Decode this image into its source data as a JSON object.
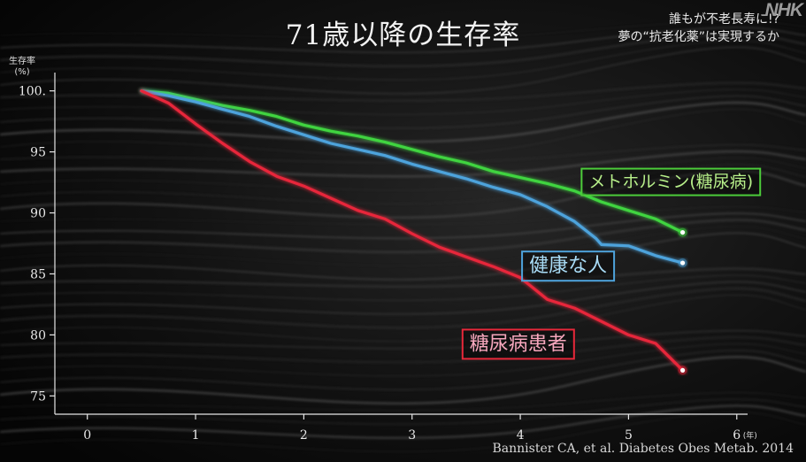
{
  "title": "71歳以降の生存率",
  "subtitle_lines": [
    "誰もが不老長寿に!?",
    "夢の“抗老化薬”は実現するか"
  ],
  "logo_text": "NHK",
  "source": "Bannister CA, et al. Diabetes Obes Metab. 2014",
  "chart_data": {
    "type": "line",
    "title": "71歳以降の生存率",
    "ylabel": "生存率",
    "yunit": "(%)",
    "xlabel": "",
    "xunit": "(年)",
    "xlim": [
      -0.3,
      6.1
    ],
    "ylim": [
      73.5,
      101.5
    ],
    "xticks": [
      0,
      1,
      2,
      3,
      4,
      5,
      6
    ],
    "xtick_labels": [
      "0",
      "1",
      "2",
      "3",
      "4",
      "5",
      "6"
    ],
    "yticks": [
      75,
      80,
      85,
      90,
      95,
      100
    ],
    "ytick_labels": [
      "75",
      "80",
      "85",
      "90",
      "95",
      "100."
    ],
    "series": [
      {
        "name": "メトホルミン(糖尿病)",
        "color": "#3fd43f",
        "x": [
          0.5,
          0.75,
          1.0,
          1.25,
          1.5,
          1.75,
          2.0,
          2.25,
          2.5,
          2.75,
          3.0,
          3.25,
          3.5,
          3.75,
          4.0,
          4.25,
          4.5,
          4.75,
          5.0,
          5.25,
          5.5
        ],
        "y": [
          100,
          99.8,
          99.3,
          98.8,
          98.4,
          97.9,
          97.2,
          96.7,
          96.3,
          95.8,
          95.2,
          94.6,
          94.1,
          93.4,
          92.9,
          92.4,
          91.8,
          90.9,
          90.2,
          89.5,
          88.4
        ]
      },
      {
        "name": "健康な人",
        "color": "#4ea3dc",
        "x": [
          0.5,
          0.75,
          1.0,
          1.25,
          1.5,
          1.75,
          2.0,
          2.25,
          2.5,
          2.75,
          3.0,
          3.25,
          3.5,
          3.75,
          4.0,
          4.25,
          4.5,
          4.7,
          4.75,
          5.0,
          5.25,
          5.5
        ],
        "y": [
          100,
          99.6,
          99.1,
          98.5,
          97.9,
          97.1,
          96.4,
          95.7,
          95.2,
          94.7,
          94.0,
          93.4,
          92.8,
          92.1,
          91.5,
          90.5,
          89.3,
          87.9,
          87.4,
          87.3,
          86.5,
          85.9
        ]
      },
      {
        "name": "糖尿病患者",
        "color": "#e8283a",
        "x": [
          0.5,
          0.75,
          1.0,
          1.25,
          1.5,
          1.75,
          2.0,
          2.25,
          2.5,
          2.75,
          3.0,
          3.25,
          3.5,
          3.75,
          4.0,
          4.25,
          4.5,
          4.75,
          5.0,
          5.25,
          5.5
        ],
        "y": [
          100,
          99.0,
          97.3,
          95.7,
          94.2,
          93.0,
          92.2,
          91.2,
          90.2,
          89.5,
          88.3,
          87.2,
          86.4,
          85.6,
          84.7,
          82.9,
          82.2,
          81.1,
          80.0,
          79.3,
          77.1
        ]
      }
    ]
  },
  "labels": [
    {
      "text": "メトホルミン(糖尿病)",
      "color": "#b7ef8a",
      "border": "#4ccc3a",
      "x": 4.55,
      "y": 92.5
    },
    {
      "text": "健康な人",
      "color": "#a9dcf6",
      "border": "#4ea3dc",
      "x": 4.0,
      "y": 85.6
    },
    {
      "text": "糖尿病患者",
      "color": "#f7a7bd",
      "border": "#e8283a",
      "x": 3.45,
      "y": 79.2
    }
  ]
}
